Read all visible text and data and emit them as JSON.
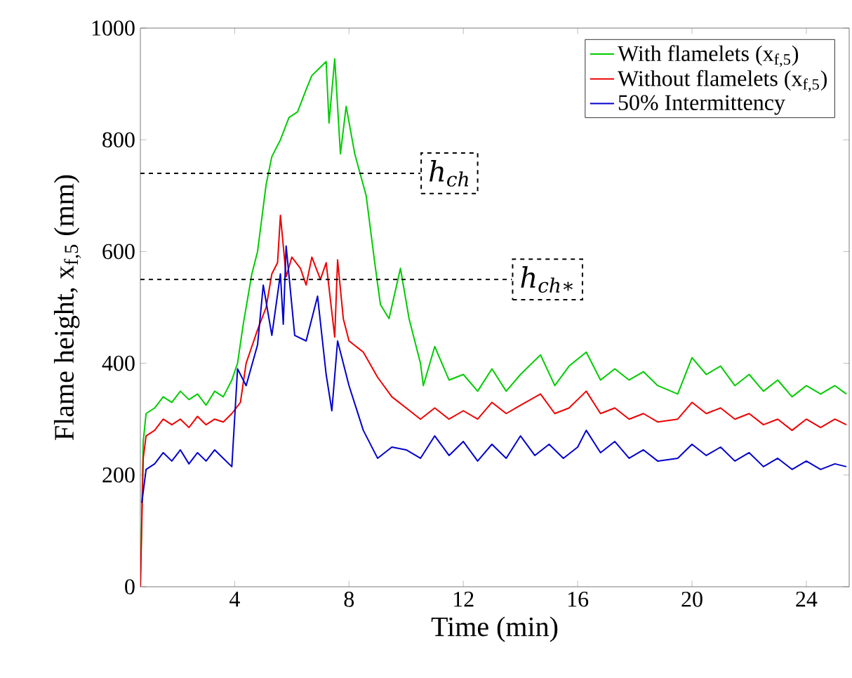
{
  "chart_data": {
    "type": "line",
    "xlabel": "Time (min)",
    "ylabel": "Flame height, x$_{f,5}$ (mm)",
    "xlim": [
      0.7,
      25.5
    ],
    "ylim": [
      0,
      1000
    ],
    "xticks": [
      4,
      8,
      12,
      16,
      20,
      24
    ],
    "yticks": [
      0,
      200,
      400,
      600,
      800,
      1000
    ],
    "grid": false,
    "legend": "top right",
    "marker": "none",
    "line_style": "solid",
    "ref_lines": [
      {
        "axis": "y",
        "value": 740,
        "label": "h$_{ch}$",
        "line_style": "dashed",
        "color": "#000000"
      },
      {
        "axis": "y",
        "value": 550,
        "label": "h$_{ch∗}$",
        "line_style": "dashed",
        "color": "#000000"
      }
    ],
    "series": [
      {
        "name": "With flamelets (x$_{f,5}$)",
        "color": "#00cc00",
        "x": [
          0.7,
          0.8,
          0.9,
          1.2,
          1.5,
          1.8,
          2.1,
          2.4,
          2.7,
          3.0,
          3.3,
          3.6,
          3.9,
          4.1,
          4.3,
          4.6,
          4.8,
          5.1,
          5.3,
          5.6,
          5.9,
          6.2,
          6.5,
          6.7,
          7.0,
          7.2,
          7.3,
          7.5,
          7.7,
          7.9,
          8.2,
          8.6,
          8.9,
          9.1,
          9.4,
          9.8,
          10.1,
          10.5,
          10.6,
          11.0,
          11.5,
          12.0,
          12.5,
          13.0,
          13.5,
          14.0,
          14.7,
          15.2,
          15.7,
          16.3,
          16.8,
          17.3,
          17.8,
          18.3,
          18.8,
          19.5,
          20.0,
          20.5,
          21.0,
          21.5,
          22.0,
          22.5,
          23.0,
          23.5,
          24.0,
          24.5,
          25.0,
          25.4
        ],
        "values": [
          0,
          260,
          310,
          320,
          340,
          330,
          350,
          335,
          345,
          325,
          350,
          340,
          370,
          400,
          470,
          560,
          600,
          720,
          770,
          800,
          840,
          850,
          890,
          915,
          930,
          940,
          830,
          945,
          775,
          860,
          775,
          700,
          580,
          505,
          480,
          570,
          480,
          400,
          360,
          430,
          370,
          380,
          350,
          390,
          350,
          380,
          415,
          360,
          395,
          420,
          370,
          390,
          370,
          385,
          360,
          345,
          410,
          380,
          395,
          360,
          380,
          350,
          370,
          340,
          360,
          345,
          360,
          345
        ]
      },
      {
        "name": "Without flamelets (x$_{f,5}$)",
        "color": "#ee0000",
        "x": [
          0.7,
          0.8,
          0.9,
          1.2,
          1.5,
          1.8,
          2.1,
          2.4,
          2.7,
          3.0,
          3.3,
          3.6,
          3.9,
          4.2,
          4.4,
          4.6,
          4.8,
          5.1,
          5.3,
          5.5,
          5.6,
          5.8,
          6.0,
          6.3,
          6.5,
          6.7,
          7.0,
          7.2,
          7.5,
          7.6,
          7.8,
          8.0,
          8.5,
          9.0,
          9.5,
          10.0,
          10.5,
          11.0,
          11.5,
          12.0,
          12.5,
          13.0,
          13.5,
          14.0,
          14.7,
          15.2,
          15.7,
          16.3,
          16.8,
          17.3,
          17.8,
          18.3,
          18.8,
          19.5,
          20.0,
          20.5,
          21.0,
          21.5,
          22.0,
          22.5,
          23.0,
          23.5,
          24.0,
          24.5,
          25.0,
          25.4
        ],
        "values": [
          0,
          230,
          270,
          280,
          300,
          290,
          300,
          285,
          305,
          290,
          300,
          295,
          310,
          330,
          400,
          430,
          460,
          500,
          560,
          580,
          665,
          555,
          590,
          570,
          540,
          590,
          550,
          580,
          447,
          585,
          480,
          440,
          420,
          375,
          340,
          320,
          300,
          320,
          300,
          315,
          300,
          330,
          310,
          325,
          345,
          310,
          320,
          350,
          310,
          320,
          300,
          310,
          295,
          300,
          330,
          310,
          320,
          300,
          310,
          290,
          300,
          280,
          300,
          285,
          300,
          290
        ]
      },
      {
        "name": "50% Intermittency",
        "color": "#0000cc",
        "x": [
          0.75,
          0.9,
          1.2,
          1.5,
          1.8,
          2.1,
          2.4,
          2.7,
          3.0,
          3.3,
          3.6,
          3.9,
          4.1,
          4.4,
          4.8,
          5.0,
          5.3,
          5.6,
          5.7,
          5.8,
          6.1,
          6.5,
          6.9,
          7.2,
          7.4,
          7.6,
          8.0,
          8.5,
          9.0,
          9.5,
          10.0,
          10.5,
          11.0,
          11.5,
          12.0,
          12.5,
          13.0,
          13.5,
          14.0,
          14.5,
          15.0,
          15.5,
          16.0,
          16.3,
          16.8,
          17.3,
          17.8,
          18.3,
          18.8,
          19.5,
          20.0,
          20.5,
          21.0,
          21.5,
          22.0,
          22.5,
          23.0,
          23.5,
          24.0,
          24.5,
          25.0,
          25.4
        ],
        "values": [
          150,
          210,
          220,
          240,
          225,
          245,
          220,
          240,
          225,
          245,
          230,
          215,
          390,
          360,
          433,
          540,
          450,
          560,
          470,
          610,
          450,
          440,
          520,
          380,
          315,
          440,
          360,
          280,
          230,
          250,
          245,
          230,
          270,
          235,
          260,
          225,
          255,
          230,
          270,
          235,
          255,
          230,
          250,
          280,
          240,
          260,
          230,
          245,
          225,
          230,
          255,
          235,
          250,
          225,
          240,
          215,
          230,
          210,
          225,
          210,
          220,
          215
        ]
      }
    ]
  }
}
